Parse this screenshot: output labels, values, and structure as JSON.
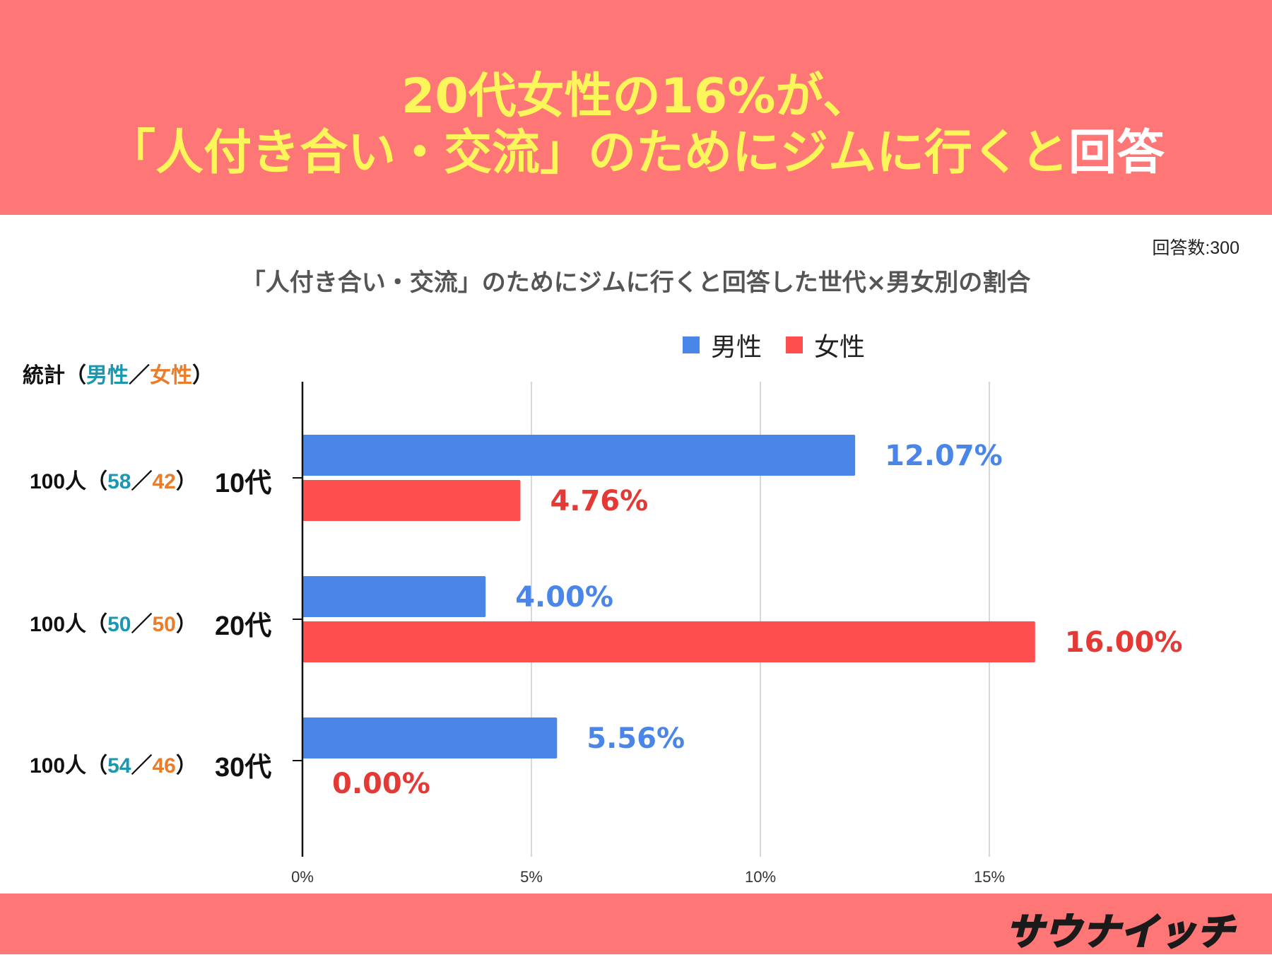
{
  "headline": {
    "line1": "20代女性の16%が、",
    "line2_main": "「人付き合い・交流」のためにジムに行くと",
    "line2_tail": "回答"
  },
  "respondents": "回答数:300",
  "chart_data": {
    "type": "bar",
    "orientation": "horizontal",
    "title": "「人付き合い・交流」のためにジムに行くと回答した世代×男女別の割合",
    "categories": [
      "10代",
      "20代",
      "30代"
    ],
    "series": [
      {
        "name": "男性",
        "color": "#4a86e8",
        "values": [
          12.07,
          4.0,
          5.56
        ],
        "labels": [
          "12.07%",
          "4.00%",
          "5.56%"
        ]
      },
      {
        "name": "女性",
        "color": "#ff4e4e",
        "values": [
          4.76,
          16.0,
          0.0
        ],
        "labels": [
          "4.76%",
          "16.00%",
          "0.00%"
        ]
      }
    ],
    "xlim": [
      0,
      17.5
    ],
    "xticks": [
      0,
      5,
      10,
      15
    ],
    "xtick_labels": [
      "0%",
      "5%",
      "10%",
      "15%"
    ],
    "label_colors": {
      "男性": "#4a86e8",
      "女性": "#e53935"
    },
    "grid": true,
    "legend_position": "top"
  },
  "stats": {
    "header_prefix": "統計（",
    "header_male": "男性",
    "header_sep": "／",
    "header_female": "女性",
    "header_suffix": "）",
    "rows": [
      {
        "total": "100人（",
        "male": "58",
        "sep": "／",
        "female": "42",
        "close": "）"
      },
      {
        "total": "100人（",
        "male": "50",
        "sep": "／",
        "female": "50",
        "close": "）"
      },
      {
        "total": "100人（",
        "male": "54",
        "sep": "／",
        "female": "46",
        "close": "）"
      }
    ]
  },
  "logo": "サウナイッチ"
}
